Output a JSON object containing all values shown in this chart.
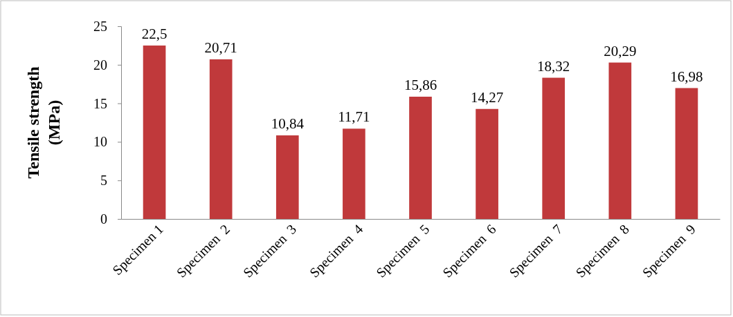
{
  "chart_data": {
    "type": "bar",
    "ylabel": "Tensile strength (MPa)",
    "categories": [
      "Specimen 1",
      "Specimen  2",
      "Specimen  3",
      "Specimen  4",
      "Specimen  5",
      "Specimen  6",
      "Specimen  7",
      "Specimen  8",
      "Specimen  9"
    ],
    "values": [
      22.5,
      20.71,
      10.84,
      11.71,
      15.86,
      14.27,
      18.32,
      20.29,
      16.98
    ],
    "value_labels": [
      "22,5",
      "20,71",
      "10,84",
      "11,71",
      "15,86",
      "14,27",
      "18,32",
      "20,29",
      "16,98"
    ],
    "color": "#c0393b",
    "ylim": [
      0,
      25
    ],
    "yticks": [
      0,
      5,
      10,
      15,
      20,
      25
    ],
    "grid": false
  }
}
